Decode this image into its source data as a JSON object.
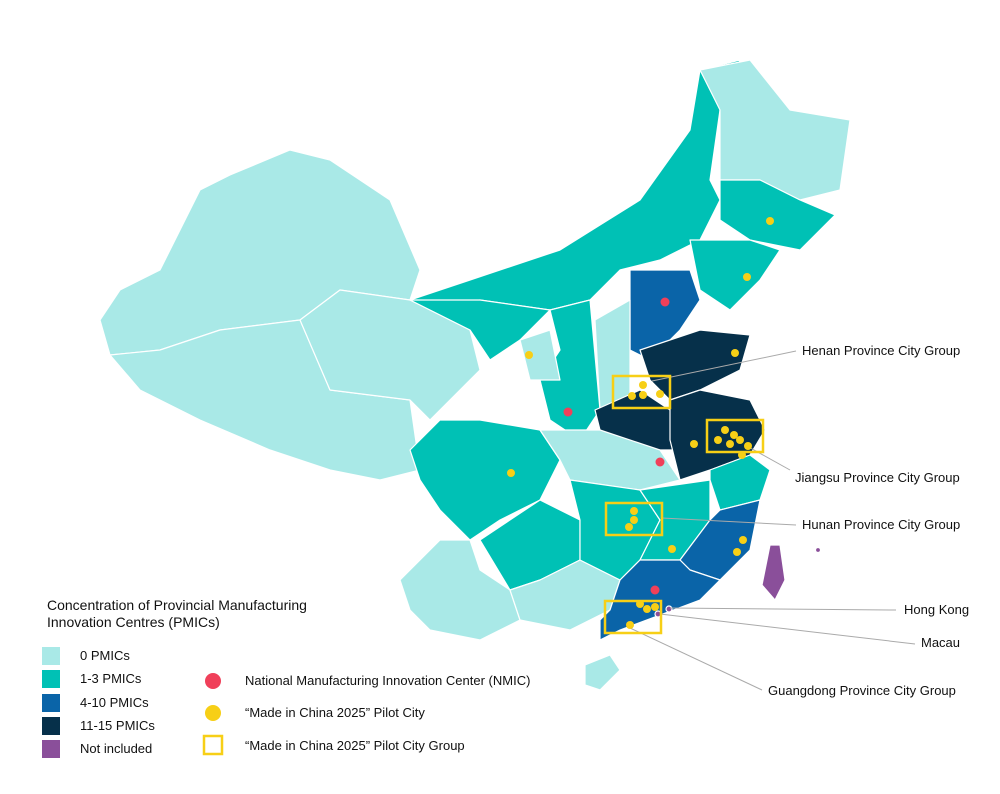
{
  "legend": {
    "title": "Concentration of Provincial Manufacturing Innovation Centres (PMICs)",
    "items": [
      {
        "label": "0 PMICs",
        "color": "#a9e9e7"
      },
      {
        "label": "1-3 PMICs",
        "color": "#00c1b5"
      },
      {
        "label": "4-10 PMICs",
        "color": "#0a64a8"
      },
      {
        "label": "11-15 PMICs",
        "color": "#06304a"
      },
      {
        "label": "Not included",
        "color": "#8a4f9a"
      }
    ]
  },
  "symbols": [
    {
      "label": "National Manufacturing Innovation Center (NMIC)",
      "color": "#f0405a"
    },
    {
      "label": "“Made in China 2025” Pilot City",
      "color": "#f7cf16"
    },
    {
      "label": "“Made in China 2025” Pilot City Group",
      "color": "#f7cf16"
    }
  ],
  "annotations": [
    "Henan Province City Group",
    "Jiangsu Province City Group",
    "Hunan Province City Group",
    "Hong Kong",
    "Macau",
    "Guangdong Province City Group"
  ]
}
